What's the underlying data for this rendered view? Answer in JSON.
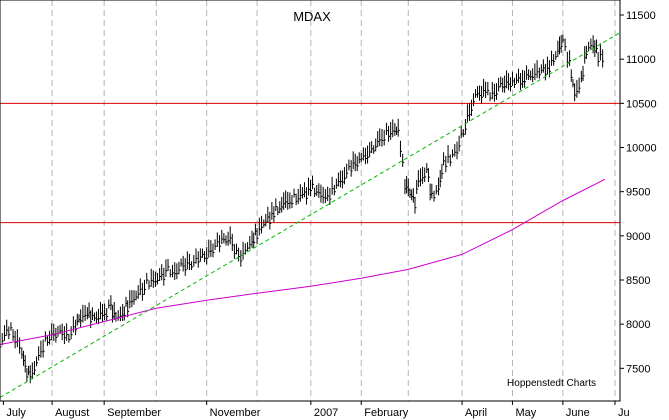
{
  "chart_data": {
    "type": "line",
    "title": "MDAX",
    "credit": "Hoppenstedt Charts",
    "xlim": [
      "2006-07-01",
      "2007-07-05"
    ],
    "ylim": [
      7130,
      11670
    ],
    "grid": {
      "vertical": true,
      "horizontal": false
    },
    "y_ticks": [
      {
        "value": 7500,
        "label": "7500"
      },
      {
        "value": 8000,
        "label": "8000"
      },
      {
        "value": 8500,
        "label": "8500"
      },
      {
        "value": 9000,
        "label": "9000"
      },
      {
        "value": 9500,
        "label": "9500"
      },
      {
        "value": 10000,
        "label": "10000"
      },
      {
        "value": 10500,
        "label": "10500"
      },
      {
        "value": 11000,
        "label": "11000"
      },
      {
        "value": 11500,
        "label": "11500"
      }
    ],
    "x_labels": [
      {
        "date": "2006-07-03",
        "label": "July"
      },
      {
        "date": "2006-08-01",
        "label": "August"
      },
      {
        "date": "2006-09-01",
        "label": "September"
      },
      {
        "date": "2006-11-01",
        "label": "November"
      },
      {
        "date": "2007-01-02",
        "label": "2007"
      },
      {
        "date": "2007-02-01",
        "label": "February"
      },
      {
        "date": "2007-04-02",
        "label": "April"
      },
      {
        "date": "2007-05-02",
        "label": "May"
      },
      {
        "date": "2007-06-01",
        "label": "June"
      },
      {
        "date": "2007-07-02",
        "label": "Ju"
      }
    ],
    "gridlines": [
      "2006-07-01",
      "2006-08-01",
      "2006-09-01",
      "2006-10-02",
      "2006-11-01",
      "2006-12-01",
      "2007-01-02",
      "2007-02-01",
      "2007-03-01",
      "2007-04-02",
      "2007-05-02",
      "2007-06-01",
      "2007-07-02"
    ],
    "horizontal_lines": [
      {
        "value": 9150,
        "color": "#dd0000"
      },
      {
        "value": 10500,
        "color": "#dd0000"
      }
    ],
    "series": [
      {
        "style": "ohlc",
        "color": "#000000",
        "points": [
          [
            "2006-07-01",
            7780
          ],
          [
            "2006-07-05",
            7960
          ],
          [
            "2006-07-10",
            7880
          ],
          [
            "2006-07-14",
            7680
          ],
          [
            "2006-07-17",
            7450
          ],
          [
            "2006-07-19",
            7400
          ],
          [
            "2006-07-24",
            7650
          ],
          [
            "2006-07-28",
            7820
          ],
          [
            "2006-08-02",
            7900
          ],
          [
            "2006-08-07",
            7920
          ],
          [
            "2006-08-11",
            7870
          ],
          [
            "2006-08-15",
            8000
          ],
          [
            "2006-08-18",
            8080
          ],
          [
            "2006-08-22",
            8130
          ],
          [
            "2006-08-25",
            8080
          ],
          [
            "2006-08-31",
            8110
          ],
          [
            "2006-09-05",
            8200
          ],
          [
            "2006-09-08",
            8100
          ],
          [
            "2006-09-12",
            8130
          ],
          [
            "2006-09-15",
            8230
          ],
          [
            "2006-09-20",
            8330
          ],
          [
            "2006-09-25",
            8450
          ],
          [
            "2006-09-29",
            8490
          ],
          [
            "2006-10-04",
            8550
          ],
          [
            "2006-10-09",
            8620
          ],
          [
            "2006-10-13",
            8600
          ],
          [
            "2006-10-18",
            8680
          ],
          [
            "2006-10-23",
            8700
          ],
          [
            "2006-10-27",
            8760
          ],
          [
            "2006-11-01",
            8800
          ],
          [
            "2006-11-06",
            8900
          ],
          [
            "2006-11-10",
            8960
          ],
          [
            "2006-11-15",
            8980
          ],
          [
            "2006-11-20",
            8750
          ],
          [
            "2006-11-24",
            8860
          ],
          [
            "2006-11-28",
            8960
          ],
          [
            "2006-12-01",
            9050
          ],
          [
            "2006-12-05",
            9150
          ],
          [
            "2006-12-11",
            9280
          ],
          [
            "2006-12-18",
            9380
          ],
          [
            "2006-12-28",
            9480
          ],
          [
            "2007-01-03",
            9550
          ],
          [
            "2007-01-08",
            9480
          ],
          [
            "2007-01-12",
            9460
          ],
          [
            "2007-01-16",
            9560
          ],
          [
            "2007-01-22",
            9700
          ],
          [
            "2007-01-26",
            9800
          ],
          [
            "2007-02-01",
            9880
          ],
          [
            "2007-02-06",
            9960
          ],
          [
            "2007-02-12",
            10080
          ],
          [
            "2007-02-16",
            10180
          ],
          [
            "2007-02-21",
            10200
          ],
          [
            "2007-02-23",
            10230
          ],
          [
            "2007-02-27",
            9600
          ],
          [
            "2007-03-02",
            9500
          ],
          [
            "2007-03-05",
            9380
          ],
          [
            "2007-03-07",
            9620
          ],
          [
            "2007-03-12",
            9760
          ],
          [
            "2007-03-15",
            9450
          ],
          [
            "2007-03-19",
            9560
          ],
          [
            "2007-03-22",
            9850
          ],
          [
            "2007-03-26",
            9900
          ],
          [
            "2007-03-30",
            9980
          ],
          [
            "2007-04-04",
            10280
          ],
          [
            "2007-04-10",
            10600
          ],
          [
            "2007-04-16",
            10650
          ],
          [
            "2007-04-20",
            10600
          ],
          [
            "2007-04-25",
            10720
          ],
          [
            "2007-05-02",
            10760
          ],
          [
            "2007-05-08",
            10790
          ],
          [
            "2007-05-14",
            10850
          ],
          [
            "2007-05-18",
            10870
          ],
          [
            "2007-05-24",
            10920
          ],
          [
            "2007-05-29",
            11100
          ],
          [
            "2007-06-01",
            11220
          ],
          [
            "2007-06-05",
            10960
          ],
          [
            "2007-06-08",
            10620
          ],
          [
            "2007-06-12",
            10780
          ],
          [
            "2007-06-15",
            11120
          ],
          [
            "2007-06-19",
            11180
          ],
          [
            "2007-06-22",
            11050
          ],
          [
            "2007-06-26",
            11000
          ]
        ]
      },
      {
        "style": "line",
        "color": "#cc00cc",
        "points": [
          [
            "2006-07-01",
            7770
          ],
          [
            "2006-08-01",
            7880
          ],
          [
            "2006-09-01",
            8030
          ],
          [
            "2006-10-02",
            8180
          ],
          [
            "2006-11-01",
            8270
          ],
          [
            "2006-12-01",
            8350
          ],
          [
            "2007-01-02",
            8430
          ],
          [
            "2007-02-01",
            8520
          ],
          [
            "2007-03-01",
            8620
          ],
          [
            "2007-04-02",
            8790
          ],
          [
            "2007-05-02",
            9070
          ],
          [
            "2007-06-01",
            9400
          ],
          [
            "2007-06-26",
            9640
          ]
        ]
      },
      {
        "style": "dashed-line",
        "color": "#00bb00",
        "points": [
          [
            "2006-07-01",
            7170
          ],
          [
            "2007-07-05",
            11300
          ]
        ]
      }
    ]
  }
}
